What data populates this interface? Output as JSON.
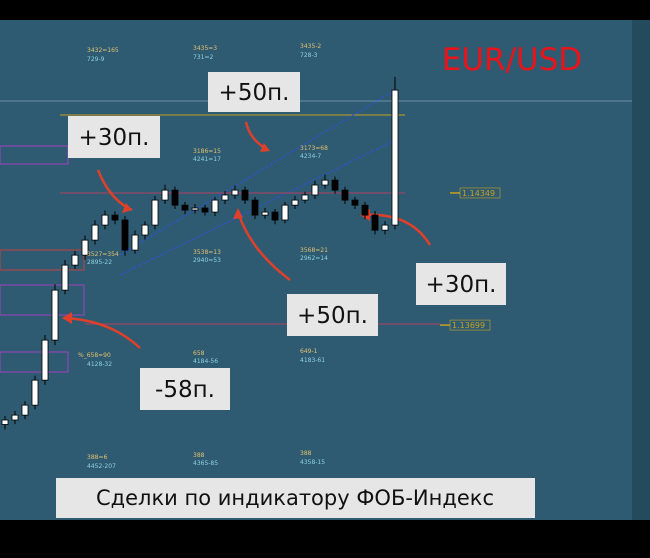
{
  "chart_data": {
    "type": "candlestick",
    "title": "EUR/USD",
    "caption": "Сделки по индикатору ФОБ-Индекс",
    "annotations": [
      "+50п.",
      "+30п.",
      "+30п.",
      "+50п.",
      "-58п."
    ],
    "level_labels": [
      "3432=165",
      "729-9",
      "3435=3",
      "731=2",
      "3435-2",
      "728-3",
      "3186=15",
      "4241=17",
      "3173=68",
      "4234-7",
      "3527=354",
      "2895-22",
      "3538=13",
      "2940=53",
      "3568=21",
      "2962=14",
      "%_658=90",
      "4128-32",
      "658",
      "4184-56",
      "649-1",
      "4183-61",
      "388=6",
      "4452-207",
      "388",
      "4365-85",
      "388",
      "4358-15"
    ],
    "hlines": [
      1.14349,
      1.13699
    ],
    "categories": [
      null,
      null,
      null,
      null,
      null,
      null,
      null,
      null,
      null,
      null,
      null,
      null,
      null,
      null,
      null,
      null,
      null,
      null,
      null,
      null,
      null,
      null,
      null,
      null,
      null,
      null,
      null,
      null,
      null,
      null,
      null,
      null,
      null,
      null,
      null,
      null,
      null,
      null,
      null,
      null
    ],
    "open": [
      1.1321,
      1.13232,
      1.13256,
      1.13305,
      1.13428,
      1.13625,
      1.13871,
      1.13994,
      1.14043,
      1.14117,
      1.14191,
      1.1424,
      1.14216,
      1.14068,
      1.14142,
      1.14191,
      1.14314,
      1.14363,
      1.14289,
      1.14265,
      1.14275,
      1.14255,
      1.14314,
      1.14339,
      1.14363,
      1.14314,
      1.1424,
      1.14255,
      1.14216,
      1.14289,
      1.14314,
      1.14339,
      1.14388,
      1.14412,
      1.14363,
      1.14314,
      1.14289,
      1.1424,
      1.14166,
      1.14191
    ],
    "high": [
      1.13252,
      1.13276,
      1.13325,
      1.1345,
      1.1365,
      1.139,
      1.1402,
      1.14065,
      1.1414,
      1.14215,
      1.14262,
      1.14258,
      1.14235,
      1.14165,
      1.1421,
      1.14335,
      1.1439,
      1.1438,
      1.14305,
      1.14295,
      1.1429,
      1.1433,
      1.14358,
      1.14385,
      1.1438,
      1.1433,
      1.14275,
      1.1427,
      1.14305,
      1.14335,
      1.14355,
      1.1441,
      1.1444,
      1.1443,
      1.1438,
      1.1433,
      1.14305,
      1.1426,
      1.1421,
      1.1492
    ],
    "low": [
      1.13185,
      1.13212,
      1.13236,
      1.13285,
      1.13405,
      1.136,
      1.1385,
      1.13975,
      1.1402,
      1.14095,
      1.1417,
      1.14195,
      1.1404,
      1.1405,
      1.1412,
      1.1417,
      1.14295,
      1.1427,
      1.14245,
      1.14248,
      1.14238,
      1.14235,
      1.14295,
      1.1432,
      1.14295,
      1.1422,
      1.14222,
      1.14195,
      1.142,
      1.1427,
      1.14298,
      1.1432,
      1.1437,
      1.14345,
      1.14295,
      1.1427,
      1.1422,
      1.14145,
      1.14145,
      1.1417
    ],
    "close": [
      1.13232,
      1.13256,
      1.13305,
      1.13428,
      1.13625,
      1.13871,
      1.13994,
      1.14043,
      1.14117,
      1.14191,
      1.1424,
      1.14216,
      1.14068,
      1.14142,
      1.14191,
      1.14314,
      1.14363,
      1.14289,
      1.14265,
      1.14275,
      1.14255,
      1.14314,
      1.14339,
      1.14363,
      1.14314,
      1.1424,
      1.14255,
      1.14216,
      1.14289,
      1.14314,
      1.14339,
      1.14388,
      1.14412,
      1.14363,
      1.14314,
      1.14289,
      1.1424,
      1.14166,
      1.14191,
      1.14855
    ],
    "ylim": [
      1.1274,
      1.152
    ],
    "up_color": "#ffffff",
    "down_color": "#000000",
    "title_color": "#e8141a",
    "hline_color": "#c8a020"
  }
}
